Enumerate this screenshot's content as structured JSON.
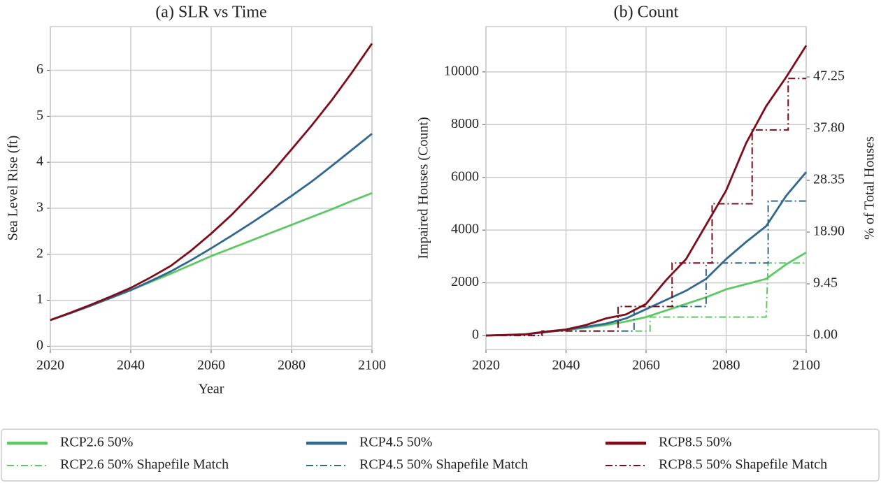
{
  "chart_data": [
    {
      "type": "line",
      "title": "(a) SLR vs Time",
      "xlabel": "Year",
      "ylabel": "Sea Level Rise (ft)",
      "x": [
        2020,
        2025,
        2030,
        2035,
        2040,
        2045,
        2050,
        2055,
        2060,
        2065,
        2070,
        2075,
        2080,
        2085,
        2090,
        2095,
        2100
      ],
      "series": [
        {
          "color": "#5ec962",
          "linestyle": "solid",
          "values": [
            0.57,
            0.72,
            0.88,
            1.05,
            1.22,
            1.4,
            1.58,
            1.77,
            1.96,
            2.13,
            2.3,
            2.47,
            2.64,
            2.81,
            2.98,
            3.16,
            3.33
          ]
        },
        {
          "color": "#31688e",
          "linestyle": "solid",
          "values": [
            0.57,
            0.72,
            0.88,
            1.05,
            1.22,
            1.42,
            1.63,
            1.87,
            2.13,
            2.4,
            2.68,
            2.97,
            3.27,
            3.58,
            3.92,
            4.27,
            4.62
          ]
        },
        {
          "color": "#7e0d1c",
          "linestyle": "solid",
          "values": [
            0.57,
            0.73,
            0.9,
            1.08,
            1.27,
            1.5,
            1.75,
            2.08,
            2.45,
            2.85,
            3.3,
            3.77,
            4.28,
            4.8,
            5.35,
            5.95,
            6.58
          ]
        }
      ],
      "xlim": [
        2020,
        2100
      ],
      "xticks": [
        2020,
        2040,
        2060,
        2080,
        2100
      ],
      "ylim": [
        -0.07,
        6.95
      ],
      "yticks": [
        0,
        1,
        2,
        3,
        4,
        5,
        6
      ],
      "grid": true
    },
    {
      "type": "line",
      "title": "(b) Count",
      "ylabel": "Impaired Houses (Count)",
      "y2label": "% of Total Houses",
      "x": [
        2020,
        2025,
        2030,
        2035,
        2040,
        2045,
        2050,
        2055,
        2060,
        2065,
        2070,
        2075,
        2080,
        2085,
        2090,
        2095,
        2100
      ],
      "series": [
        {
          "name": "RCP2.6 50%",
          "color": "#5ec962",
          "linestyle": "solid",
          "values": [
            0,
            20,
            50,
            130,
            200,
            300,
            400,
            530,
            700,
            950,
            1200,
            1450,
            1750,
            1950,
            2150,
            2700,
            3150
          ]
        },
        {
          "name": "RCP2.6 50% Shapefile Match",
          "color": "#5ec962",
          "linestyle": "dashdot",
          "x": [
            2020,
            2034,
            2034,
            2061,
            2061,
            2090,
            2090.5,
            2100
          ],
          "values": [
            0,
            0,
            170,
            170,
            700,
            700,
            2750,
            2750
          ]
        },
        {
          "name": "RCP4.5 50%",
          "color": "#31688e",
          "linestyle": "solid",
          "values": [
            0,
            20,
            40,
            130,
            220,
            330,
            450,
            650,
            1000,
            1350,
            1700,
            2150,
            2900,
            3550,
            4150,
            5300,
            6200
          ]
        },
        {
          "name": "RCP4.5 50% Shapefile Match",
          "color": "#31688e",
          "linestyle": "dashdot",
          "x": [
            2020,
            2034,
            2034,
            2057,
            2057,
            2075,
            2075,
            2090.5,
            2090.5,
            2100
          ],
          "values": [
            0,
            0,
            170,
            170,
            1100,
            1100,
            2750,
            2750,
            5100,
            5100
          ]
        },
        {
          "name": "RCP8.5 50%",
          "color": "#7e0d1c",
          "linestyle": "solid",
          "values": [
            0,
            20,
            50,
            150,
            230,
            400,
            650,
            800,
            1200,
            2100,
            2900,
            4200,
            5500,
            7300,
            8700,
            9800,
            11000
          ]
        },
        {
          "name": "RCP8.5 50% Shapefile Match",
          "color": "#7e0d1c",
          "linestyle": "dashdot",
          "x": [
            2020,
            2034,
            2034,
            2053,
            2053,
            2066.5,
            2066.5,
            2076.5,
            2076.5,
            2086.5,
            2086.5,
            2095.5,
            2095.5,
            2100
          ],
          "values": [
            0,
            0,
            170,
            170,
            1100,
            1100,
            2750,
            2750,
            5000,
            5000,
            7800,
            7800,
            9750,
            9750
          ]
        }
      ],
      "xlim": [
        2020,
        2100
      ],
      "xticks": [
        2020,
        2040,
        2060,
        2080,
        2100
      ],
      "ylim": [
        -530,
        11720
      ],
      "yticks": [
        0,
        2000,
        4000,
        6000,
        8000,
        10000
      ],
      "y2lim": [
        -2.55,
        56.45
      ],
      "y2ticks": [
        {
          "value": 0,
          "label": "0.00"
        },
        9.45,
        {
          "value": 18.9,
          "label": "18.90"
        },
        28.35,
        {
          "value": 37.8,
          "label": "37.80"
        },
        47.25
      ],
      "grid": true,
      "legend": "bottom"
    }
  ]
}
